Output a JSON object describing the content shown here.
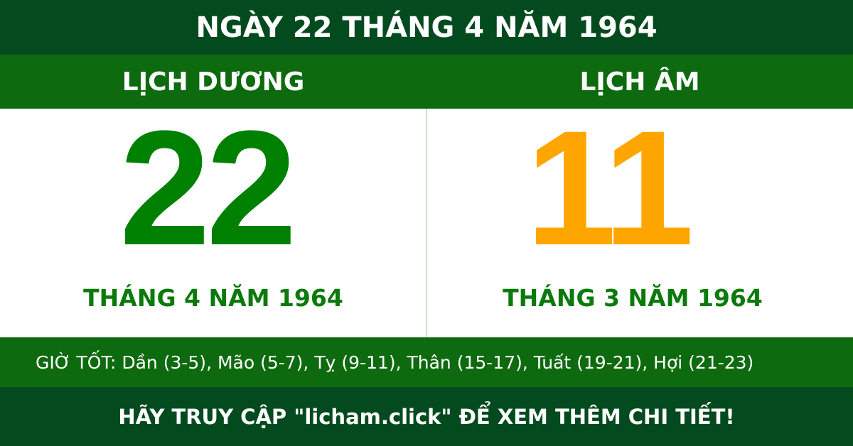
{
  "title": "NGÀY 22 THÁNG 4 NĂM 1964",
  "solar": {
    "label": "LỊCH DƯƠNG",
    "day": "22",
    "month_year": "THÁNG 4 NĂM 1964"
  },
  "lunar": {
    "label": "LỊCH ÂM",
    "day": "11",
    "month_year": "THÁNG 3 NĂM 1964"
  },
  "good_hours": "GIỜ TỐT: Dần (3-5), Mão (5-7), Tỵ (9-11), Thân (15-17), Tuất (19-21), Hợi (21-23)",
  "footer": "HÃY TRUY CẬP \"licham.click\" ĐỂ XEM THÊM CHI TIẾT!",
  "colors": {
    "dark_green": "#044a1f",
    "green": "#0e6a0e",
    "solar_day": "#008000",
    "lunar_day": "#ffa500"
  }
}
